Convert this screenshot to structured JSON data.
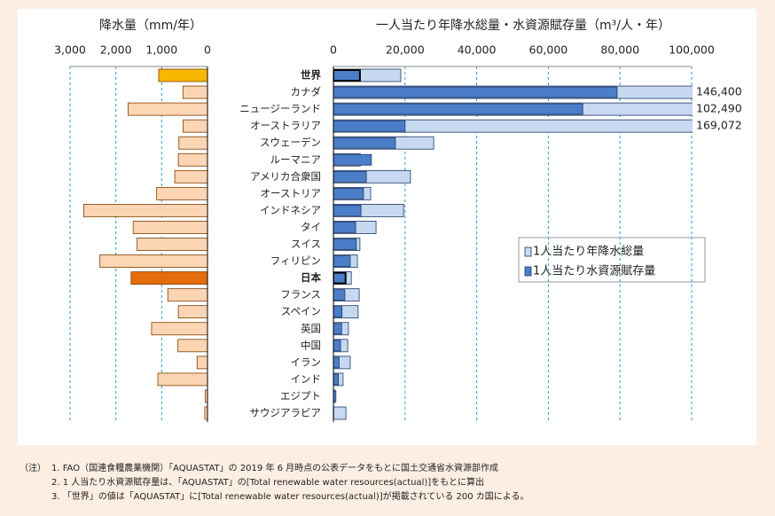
{
  "chart_data": [
    {
      "type": "hbar-reversed",
      "title": "降水量（mm/年）",
      "values": [
        1065,
        537,
        1732,
        534,
        624,
        637,
        715,
        1110,
        2702,
        1622,
        1537,
        2348,
        1668,
        867,
        636,
        1220,
        645,
        228,
        1083,
        51,
        59
      ],
      "colors": [
        "#f7b700",
        "#fcd5b4",
        "#fcd5b4",
        "#fcd5b4",
        "#fcd5b4",
        "#fcd5b4",
        "#fcd5b4",
        "#fcd5b4",
        "#fcd5b4",
        "#fcd5b4",
        "#fcd5b4",
        "#fcd5b4",
        "#e46c0a",
        "#fcd5b4",
        "#fcd5b4",
        "#fcd5b4",
        "#fcd5b4",
        "#fcd5b4",
        "#fcd5b4",
        "#fcd5b4",
        "#fcd5b4"
      ],
      "xlim": [
        0,
        3000
      ],
      "xticks": [
        {
          "value": 3000,
          "label": "3,000"
        },
        {
          "value": 2000,
          "label": "2,000"
        },
        {
          "value": 1000,
          "label": "1,000"
        },
        0
      ],
      "grid": true
    },
    {
      "type": "hbar-overlap",
      "title": "一人当たり年降水総量・水資源賦存量（m³/人・年）",
      "categories": [
        "世界",
        "カナダ",
        "ニュージーランド",
        "オーストラリア",
        "スウェーデン",
        "ルーマニア",
        "アメリカ合衆国",
        "オーストリア",
        "インドネシア",
        "タイ",
        "スイス",
        "フィリピン",
        "日本",
        "フランス",
        "スペイン",
        "英国",
        "中国",
        "イラン",
        "インド",
        "エジプト",
        "サウジアラビア"
      ],
      "bold_indices": [
        0,
        12
      ],
      "series": [
        {
          "name": "1人当たり年降水総量",
          "color": "#c6d9f1",
          "values": [
            18800,
            146400,
            102490,
            169072,
            28000,
            7500,
            21500,
            10400,
            19600,
            11900,
            7400,
            6700,
            5000,
            7200,
            6900,
            4200,
            4000,
            4700,
            2700,
            500,
            3500
          ],
          "value_labels": [
            null,
            "146,400",
            "102,490",
            "169,072",
            null,
            null,
            null,
            null,
            null,
            null,
            null,
            null,
            null,
            null,
            null,
            null,
            null,
            null,
            null,
            null,
            null
          ]
        },
        {
          "name": "1人当たり水資源賦存量",
          "color": "#4a7ec8",
          "values": [
            7400,
            79200,
            69600,
            20000,
            17300,
            10600,
            9200,
            8400,
            7700,
            6200,
            6400,
            4700,
            3400,
            3200,
            2400,
            2300,
            2000,
            1600,
            1400,
            700,
            80
          ]
        }
      ],
      "xlim": [
        0,
        100000
      ],
      "xticks": [
        0,
        {
          "value": 20000,
          "label": "20,000"
        },
        {
          "value": 40000,
          "label": "40,000"
        },
        {
          "value": 60000,
          "label": "60,000"
        },
        {
          "value": 80000,
          "label": "80,000"
        },
        {
          "value": 100000,
          "label": "100,000"
        }
      ],
      "grid": true
    }
  ],
  "notes": {
    "label": "（注）",
    "items": [
      "1. FAO（国連食糧農業機関）「AQUASTAT」の 2019 年 6 月時点の公表データをもとに国土交通省水資源部作成",
      "2. 1 人当たり水資源賦存量は、「AQUASTAT」の[Total renewable water resources(actual)]をもとに算出",
      "3. 「世界」の値は「AQUASTAT」に[Total renewable water resources(actual)]が掲載されている 200 カ国による。"
    ]
  }
}
